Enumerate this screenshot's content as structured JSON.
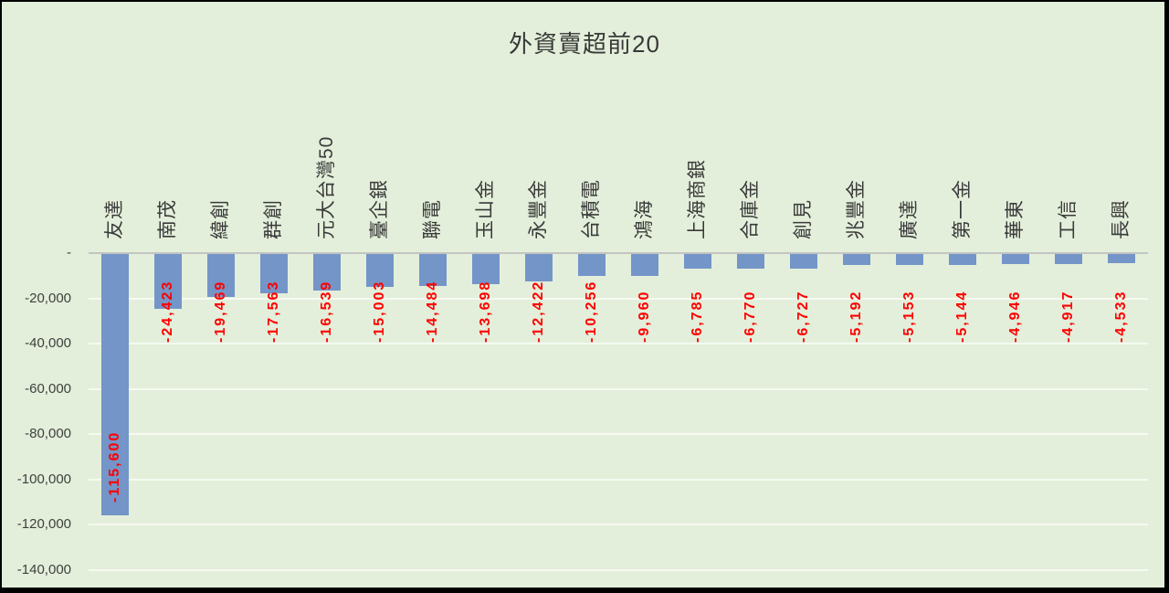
{
  "title": "外資賣超前20",
  "colors": {
    "background": "#e3efda",
    "frame": "#000000",
    "bar": "#7495c8",
    "value_label": "#ff0000",
    "axis_line": "#c2c5c1",
    "gridline": "#f6faf1",
    "text": "#3f3f3f"
  },
  "y_axis": {
    "tick_labels": [
      "-",
      "-20,000",
      "-40,000",
      "-60,000",
      "-80,000",
      "-100,000",
      "-120,000",
      "-140,000"
    ],
    "max": 0,
    "min": -140000,
    "step": 20000
  },
  "chart_data": {
    "type": "bar",
    "title": "外資賣超前20",
    "categories": [
      "友達",
      "南茂",
      "緯創",
      "群創",
      "元大台灣50",
      "臺企銀",
      "聯電",
      "玉山金",
      "永豐金",
      "台積電",
      "鴻海",
      "上海商銀",
      "合庫金",
      "創見",
      "兆豐金",
      "廣達",
      "第一金",
      "華東",
      "工信",
      "長興"
    ],
    "values": [
      -115600,
      -24423,
      -19469,
      -17563,
      -16539,
      -15003,
      -14484,
      -13698,
      -12422,
      -10256,
      -9960,
      -6785,
      -6770,
      -6727,
      -5192,
      -5153,
      -5144,
      -4946,
      -4917,
      -4533
    ],
    "data_labels": [
      "-115,600",
      "-24,423",
      "-19,469",
      "-17,563",
      "-16,539",
      "-15,003",
      "-14,484",
      "-13,698",
      "-12,422",
      "-10,256",
      "-9,960",
      "-6,785",
      "-6,770",
      "-6,727",
      "-5,192",
      "-5,153",
      "-5,144",
      "-4,946",
      "-4,917",
      "-4,533"
    ],
    "ylim": [
      -140000,
      0
    ],
    "xlabel": "",
    "ylabel": "",
    "legend": "none",
    "grid": true,
    "category_label_rotation": -90,
    "data_label_rotation": -90
  }
}
